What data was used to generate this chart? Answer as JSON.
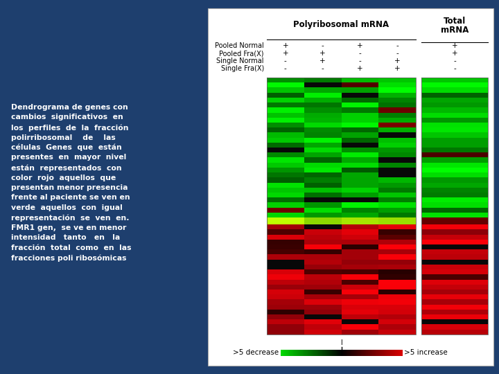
{
  "background_color": "#1e3f6e",
  "title_polyribosomal": "Polyribosomal mRNA",
  "title_total_line1": "Total",
  "title_total_line2": "mRNA",
  "sample_labels": [
    "Pooled Normal",
    "Pooled Fra(X)",
    "Single Normal",
    "Single Fra(X)"
  ],
  "column_signs_poly": [
    [
      "+",
      "-",
      "+",
      "-"
    ],
    [
      "+",
      "+",
      "-",
      "-"
    ],
    [
      "-",
      "+",
      "-",
      "+"
    ],
    [
      "-",
      "-",
      "+",
      "+"
    ]
  ],
  "column_signs_total": [
    "+",
    "+",
    "-",
    "-"
  ],
  "fmr1_label": "FMR1",
  "legend_decrease": ">5 decrease",
  "legend_increase": ">5 increase",
  "n_rows_green": 28,
  "n_rows_red": 22,
  "n_poly_cols": 4,
  "n_total_cols": 1,
  "text_color": "#ffffff",
  "left_text": [
    "Dendrograma de genes con",
    "cambios  significativos  en",
    "los  perfiles  de  la  fracción",
    "polirribosomal    de    las",
    "células  Genes  que  están",
    "presentes  en  mayor  nivel",
    "están  representados  con",
    "color  rojo  aquellos  que",
    "presentan menor presencia",
    "frente al paciente se ven en",
    "verde  aquellos  con  igual",
    "representación  se  ven  en.",
    "FMR1 gen,  se ve en menor",
    "intensidad   tanto   en   la",
    "fracción  total  como  en  las",
    "fracciones poli ribosómicas"
  ]
}
